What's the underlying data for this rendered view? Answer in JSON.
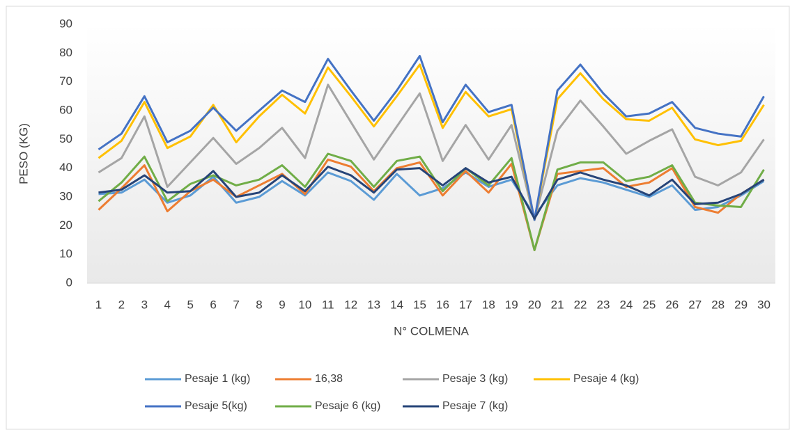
{
  "chart_data": {
    "type": "line",
    "x_label": "N° COLMENA",
    "y_label": "PESO (KG)",
    "categories": [
      "1",
      "2",
      "3",
      "4",
      "5",
      "6",
      "7",
      "8",
      "9",
      "10",
      "11",
      "12",
      "13",
      "14",
      "15",
      "16",
      "17",
      "18",
      "19",
      "20",
      "21",
      "22",
      "23",
      "24",
      "25",
      "26",
      "27",
      "28",
      "29",
      "30"
    ],
    "ylim": [
      0,
      90
    ],
    "yticks": [
      0,
      10,
      20,
      30,
      40,
      50,
      60,
      70,
      80,
      90
    ],
    "grid": false,
    "legend": "bottom",
    "series": [
      {
        "name": "Pesaje 1 (kg)",
        "color": "#5b9bd5",
        "values": [
          31,
          31.5,
          36,
          28,
          30.5,
          37,
          28,
          30,
          35.5,
          30.5,
          38.5,
          35.5,
          29,
          38,
          30.5,
          33,
          38.5,
          33.5,
          36,
          23.5,
          34,
          36.5,
          35,
          32.5,
          30,
          34,
          25.5,
          26.5,
          30.5,
          35.5
        ]
      },
      {
        "name": "16,38",
        "color": "#ed7d31",
        "values": [
          25.5,
          33,
          41,
          25,
          32,
          36,
          30,
          34,
          38,
          31,
          43,
          40.5,
          32,
          40,
          42,
          30.5,
          39,
          31.5,
          41.5,
          11.5,
          38,
          39,
          40,
          33.5,
          35,
          40,
          26.5,
          24.5,
          31,
          36
        ]
      },
      {
        "name": "Pesaje 3 (kg)",
        "color": "#a5a5a5",
        "values": [
          38.5,
          43.5,
          58,
          33.5,
          42,
          50.5,
          41.5,
          47,
          54,
          43.5,
          69,
          56,
          43,
          54.5,
          66,
          42.5,
          55,
          43,
          55,
          22,
          53,
          63.5,
          54.5,
          45,
          49.5,
          53.5,
          37,
          34,
          38.5,
          50
        ]
      },
      {
        "name": "Pesaje 4 (kg)",
        "color": "#ffc000",
        "values": [
          43.5,
          49.5,
          63,
          47,
          51,
          62,
          49,
          58,
          65.5,
          59,
          75,
          65,
          54.5,
          65,
          76,
          54,
          66.5,
          58,
          60.5,
          22,
          64,
          73,
          64,
          57,
          56.5,
          61,
          50,
          48,
          49.5,
          62
        ]
      },
      {
        "name": "Pesaje 5(kg)",
        "color": "#4472c4",
        "values": [
          46.5,
          52,
          65,
          49,
          53,
          61,
          53,
          60,
          67,
          63,
          78,
          67,
          56.5,
          67,
          79,
          56,
          69,
          59.5,
          62,
          22,
          67,
          76,
          66,
          58,
          59,
          63,
          54,
          52,
          51,
          65
        ]
      },
      {
        "name": "Pesaje 6 (kg)",
        "color": "#70ad47",
        "values": [
          28.5,
          35,
          44,
          28.5,
          34.5,
          37.5,
          34,
          36,
          41,
          33.5,
          45,
          42.5,
          33.5,
          42.5,
          44,
          32,
          40,
          34,
          43.5,
          11.5,
          39.5,
          42,
          42,
          35.5,
          37,
          41,
          28,
          27,
          26.5,
          39.5
        ]
      },
      {
        "name": "Pesaje 7 (kg)",
        "color": "#264478",
        "values": [
          31.5,
          32.5,
          37.5,
          31.5,
          32,
          39,
          30,
          31.5,
          37.5,
          32,
          40.5,
          37.5,
          31.5,
          39.5,
          40,
          34,
          40,
          35,
          37,
          22.5,
          36,
          38.5,
          36,
          34,
          30.5,
          36,
          27.5,
          28,
          31,
          36
        ]
      }
    ]
  }
}
